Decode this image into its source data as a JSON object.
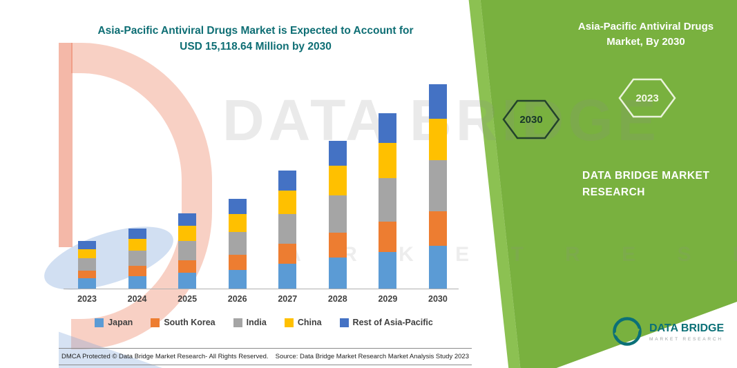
{
  "title": {
    "line1": "Asia-Pacific Antiviral Drugs Market is Expected to Account for",
    "line2": "USD 15,118.64 Million by 2030"
  },
  "chart_data": {
    "type": "bar",
    "stacked": true,
    "title": "Asia-Pacific Antiviral Drugs Market is Expected to Account for USD 15,118.64 Million by 2030",
    "unit": "USD Million",
    "categories": [
      "2023",
      "2024",
      "2025",
      "2026",
      "2027",
      "2028",
      "2029",
      "2030"
    ],
    "series": [
      {
        "name": "Japan",
        "color": "#5B9BD5",
        "values": [
          745,
          935,
          1170,
          1395,
          1835,
          2295,
          2725,
          3175
        ]
      },
      {
        "name": "South Korea",
        "color": "#ED7D31",
        "values": [
          600,
          755,
          950,
          1130,
          1485,
          1860,
          2205,
          2570
        ]
      },
      {
        "name": "India",
        "color": "#A5A5A5",
        "values": [
          885,
          1115,
          1395,
          1665,
          2185,
          2735,
          3245,
          3780
        ]
      },
      {
        "name": "China",
        "color": "#FFC000",
        "values": [
          710,
          890,
          1115,
          1330,
          1750,
          2185,
          2595,
          3024
        ]
      },
      {
        "name": "Rest of Asia-Pacific",
        "color": "#4472C4",
        "values": [
          600,
          755,
          945,
          1130,
          1485,
          1860,
          2205,
          2569.64
        ]
      }
    ],
    "totals_2030": 15118.64,
    "ylim": [
      0,
      15118.64
    ],
    "grid": false,
    "legend_position": "bottom"
  },
  "watermark": {
    "line1": "DATA BRIDGE",
    "line2": "M A R K E T   R E S E A R C H"
  },
  "side_panel": {
    "accent_green": "#79B13F",
    "accent_green_light": "#8CC152",
    "title_line1": "Asia-Pacific Antiviral Drugs",
    "title_line2": "Market, By 2030",
    "hexagon_left": "2030",
    "hexagon_right": "2023",
    "brand_line1": "DATA BRIDGE MARKET",
    "brand_line2": "RESEARCH"
  },
  "footer": {
    "dmca": "DMCA Protected © Data Bridge Market Research-  All Rights Reserved.",
    "source": "Source: Data Bridge Market Research  Market Analysis Study 2023"
  },
  "logo": {
    "name": "DATA BRIDGE",
    "tagline": "MARKET RESEARCH",
    "brand_teal": "#0B7077"
  }
}
